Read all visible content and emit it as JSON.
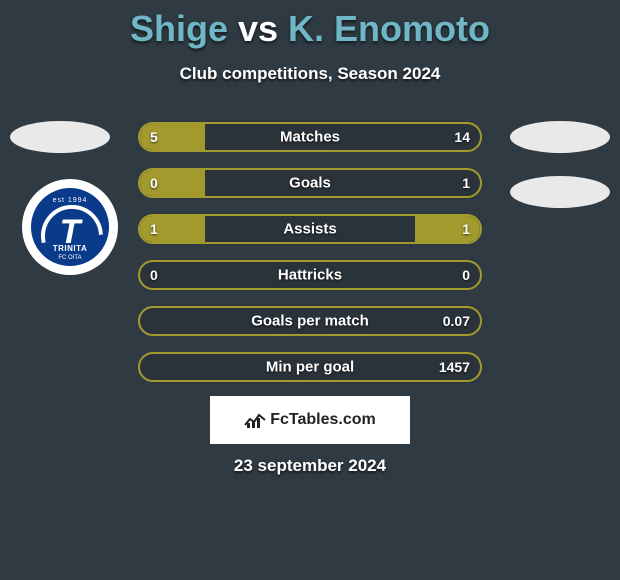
{
  "title": {
    "player1": "Shige",
    "vs": "vs",
    "player2": "K. Enomoto",
    "player1_color": "#6fb7c6",
    "vs_color": "#ffffff",
    "player2_color": "#6fb7c6"
  },
  "subtitle": "Club competitions, Season 2024",
  "club_badge": {
    "est": "est 1994",
    "letter": "T",
    "name": "TRINITA",
    "fc": "FC OITA",
    "outer_bg": "#ffffff",
    "inner_bg": "#0a3a8a"
  },
  "bars": {
    "track_color": "#2a333a",
    "fill_color": "#a39a2e",
    "border_color": "#a39a2e",
    "rows": [
      {
        "label": "Matches",
        "left_val": "5",
        "right_val": "14",
        "left_pct": 19,
        "right_pct": 0
      },
      {
        "label": "Goals",
        "left_val": "0",
        "right_val": "1",
        "left_pct": 19,
        "right_pct": 0
      },
      {
        "label": "Assists",
        "left_val": "1",
        "right_val": "1",
        "left_pct": 19,
        "right_pct": 19
      },
      {
        "label": "Hattricks",
        "left_val": "0",
        "right_val": "0",
        "left_pct": 0,
        "right_pct": 0
      },
      {
        "label": "Goals per match",
        "left_val": "",
        "right_val": "0.07",
        "left_pct": 0,
        "right_pct": 0
      },
      {
        "label": "Min per goal",
        "left_val": "",
        "right_val": "1457",
        "left_pct": 0,
        "right_pct": 0
      }
    ]
  },
  "brand": "FcTables.com",
  "date": "23 september 2024",
  "background_color": "#2f3a42"
}
